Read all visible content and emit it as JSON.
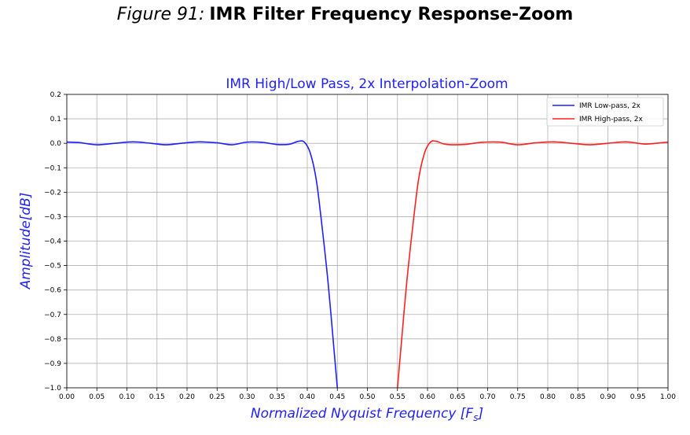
{
  "figure": {
    "label": "Figure 91:",
    "title": "IMR Filter Frequency Response-Zoom"
  },
  "chart_data": {
    "type": "line",
    "title": "IMR High/Low Pass, 2x Interpolation-Zoom",
    "xlabel_main": "Normalized Nyquist Frequency [F",
    "xlabel_sub": "s",
    "xlabel_end": "]",
    "ylabel_main": "Amplitude[dB]",
    "xlim": [
      0.0,
      1.0
    ],
    "ylim": [
      -1.0,
      0.2
    ],
    "xticks": [
      0.0,
      0.05,
      0.1,
      0.15,
      0.2,
      0.25,
      0.3,
      0.35,
      0.4,
      0.45,
      0.5,
      0.55,
      0.6,
      0.65,
      0.7,
      0.75,
      0.8,
      0.85,
      0.9,
      0.95,
      1.0
    ],
    "xtick_labels": [
      "0.00",
      "0.05",
      "0.10",
      "0.15",
      "0.20",
      "0.25",
      "0.30",
      "0.35",
      "0.40",
      "0.45",
      "0.50",
      "0.55",
      "0.60",
      "0.65",
      "0.70",
      "0.75",
      "0.80",
      "0.85",
      "0.90",
      "0.95",
      "1.00"
    ],
    "yticks": [
      0.2,
      0.1,
      0.0,
      -0.1,
      -0.2,
      -0.3,
      -0.4,
      -0.5,
      -0.6,
      -0.7,
      -0.8,
      -0.9,
      -1.0
    ],
    "ytick_labels": [
      "0.2",
      "0.1",
      "0.0",
      "−0.1",
      "−0.2",
      "−0.3",
      "−0.4",
      "−0.5",
      "−0.6",
      "−0.7",
      "−0.8",
      "−0.9",
      "−1.0"
    ],
    "grid": true,
    "legend_position": "top-right",
    "series": [
      {
        "name": "IMR Low-pass, 2x",
        "color": "#1f1fff",
        "x": [
          0.0,
          0.02,
          0.05,
          0.08,
          0.11,
          0.14,
          0.165,
          0.19,
          0.22,
          0.25,
          0.275,
          0.3,
          0.325,
          0.35,
          0.37,
          0.385,
          0.395,
          0.405,
          0.415,
          0.425,
          0.435,
          0.445,
          0.45
        ],
        "y": [
          0.005,
          0.003,
          -0.006,
          0.0,
          0.006,
          0.0,
          -0.006,
          0.0,
          0.006,
          0.002,
          -0.006,
          0.005,
          0.004,
          -0.005,
          -0.004,
          0.008,
          0.005,
          -0.04,
          -0.15,
          -0.35,
          -0.58,
          -0.86,
          -1.0
        ]
      },
      {
        "name": "IMR High-pass, 2x",
        "color": "#ff2020",
        "x": [
          0.55,
          0.555,
          0.565,
          0.575,
          0.585,
          0.595,
          0.605,
          0.615,
          0.63,
          0.66,
          0.69,
          0.72,
          0.75,
          0.78,
          0.81,
          0.84,
          0.87,
          0.9,
          0.93,
          0.96,
          0.98,
          1.0
        ],
        "y": [
          -1.0,
          -0.86,
          -0.58,
          -0.35,
          -0.15,
          -0.04,
          0.005,
          0.008,
          -0.004,
          -0.005,
          0.004,
          0.005,
          -0.006,
          0.002,
          0.006,
          0.0,
          -0.006,
          0.0,
          0.006,
          -0.003,
          0.0,
          0.005
        ]
      }
    ]
  }
}
